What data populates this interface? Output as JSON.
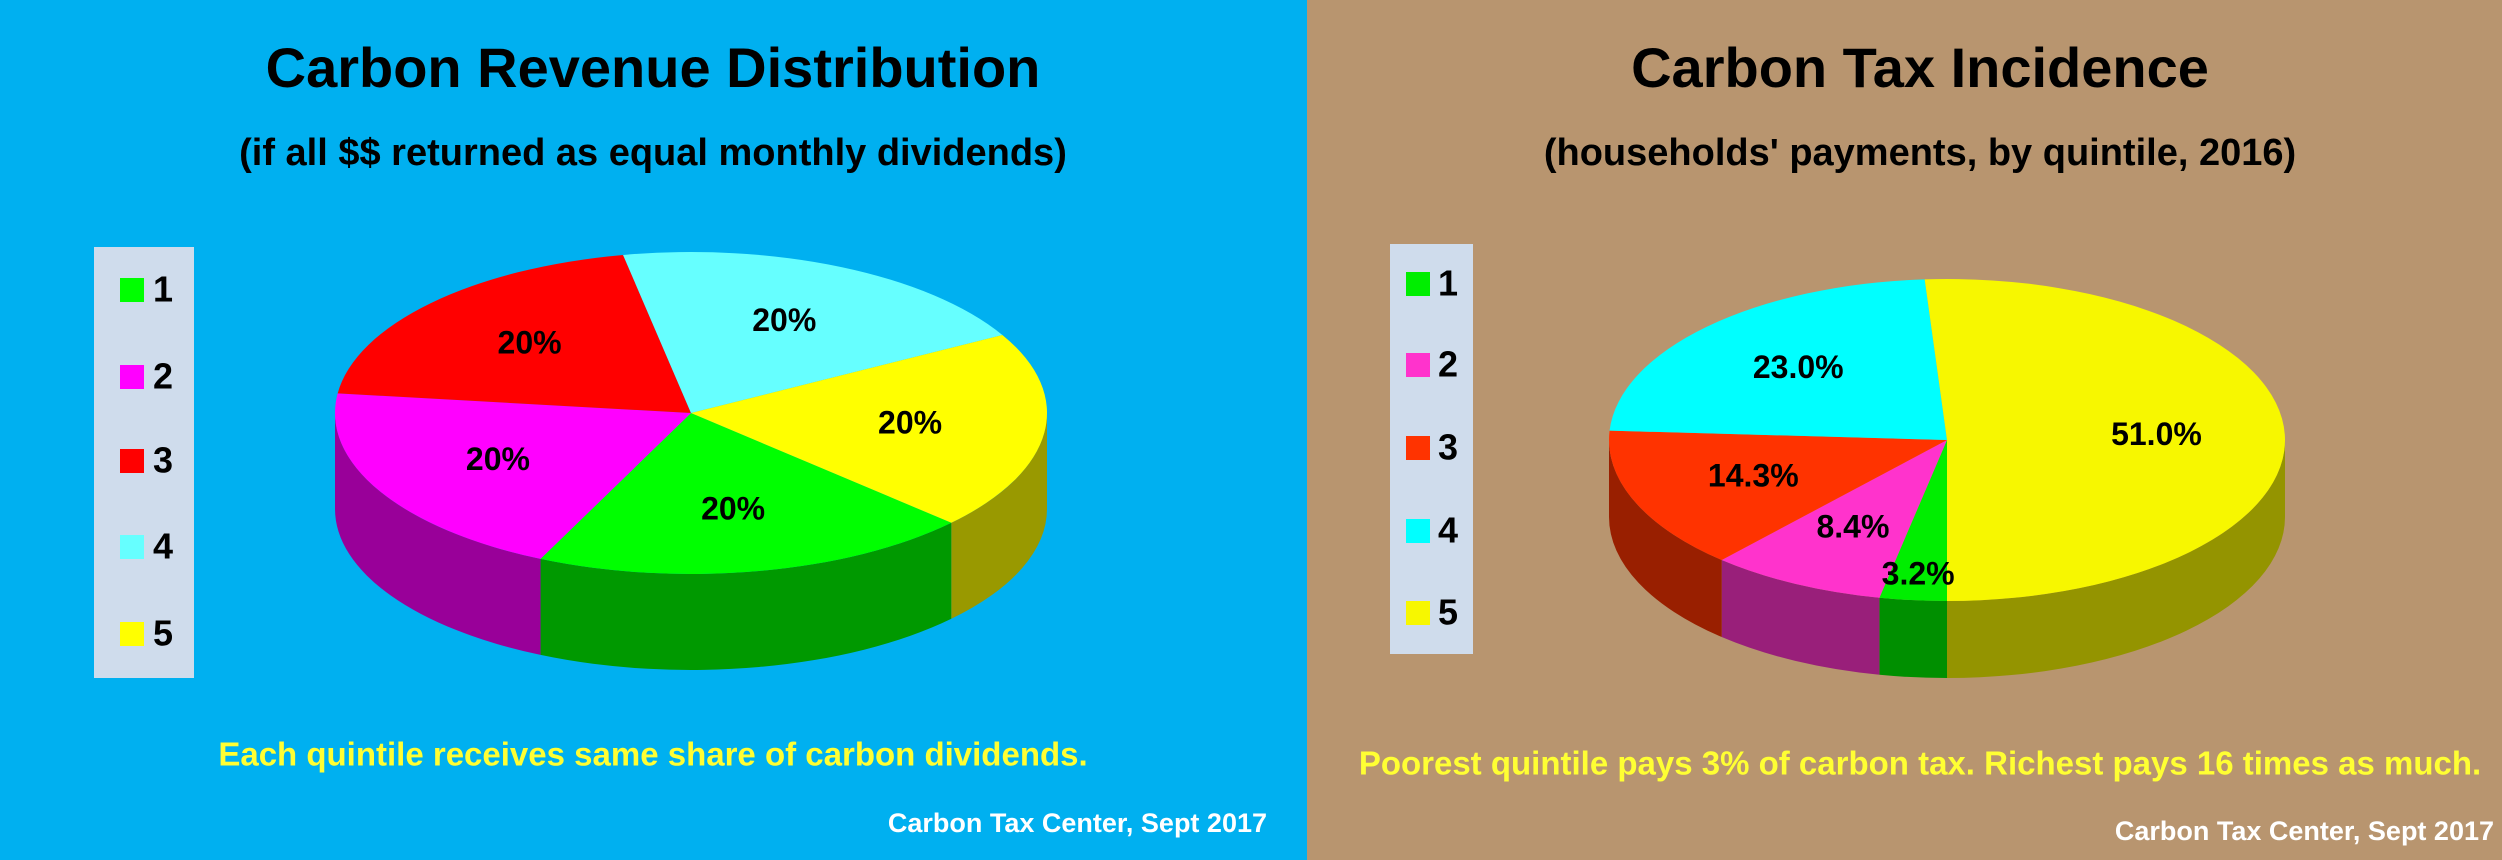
{
  "chart_data": [
    {
      "type": "pie",
      "title": "Carbon Revenue Distribution",
      "subtitle": "(if all $$ returned as equal monthly dividends)",
      "categories": [
        "1",
        "2",
        "3",
        "4",
        "5"
      ],
      "values": [
        20,
        20,
        20,
        20,
        20
      ],
      "value_labels": [
        "20%",
        "20%",
        "20%",
        "20%",
        "20%"
      ],
      "colors": [
        "#00ff00",
        "#ff00ff",
        "#ff0000",
        "#66ffff",
        "#ffff00"
      ],
      "annotation": "Each quintile receives same share of carbon dividends.",
      "source": "Carbon Tax Center, Sept 2017",
      "legend": "left"
    },
    {
      "type": "pie",
      "title": "Carbon Tax Incidence",
      "subtitle": "(households' payments, by quintile, 2016)",
      "categories": [
        "1",
        "2",
        "3",
        "4",
        "5"
      ],
      "values": [
        3.2,
        8.4,
        14.3,
        23.0,
        51.0
      ],
      "value_labels": [
        "3.2%",
        "8.4%",
        "14.3%",
        "23.0%",
        "51.0%"
      ],
      "colors": [
        "#00ee00",
        "#ff33cc",
        "#ff3300",
        "#00ffff",
        "#f7f700"
      ],
      "annotation": "Poorest quintile pays 3% of carbon tax. Richest pays 16 times as much.",
      "source": "Carbon Tax Center, Sept 2017",
      "legend": "left"
    }
  ]
}
